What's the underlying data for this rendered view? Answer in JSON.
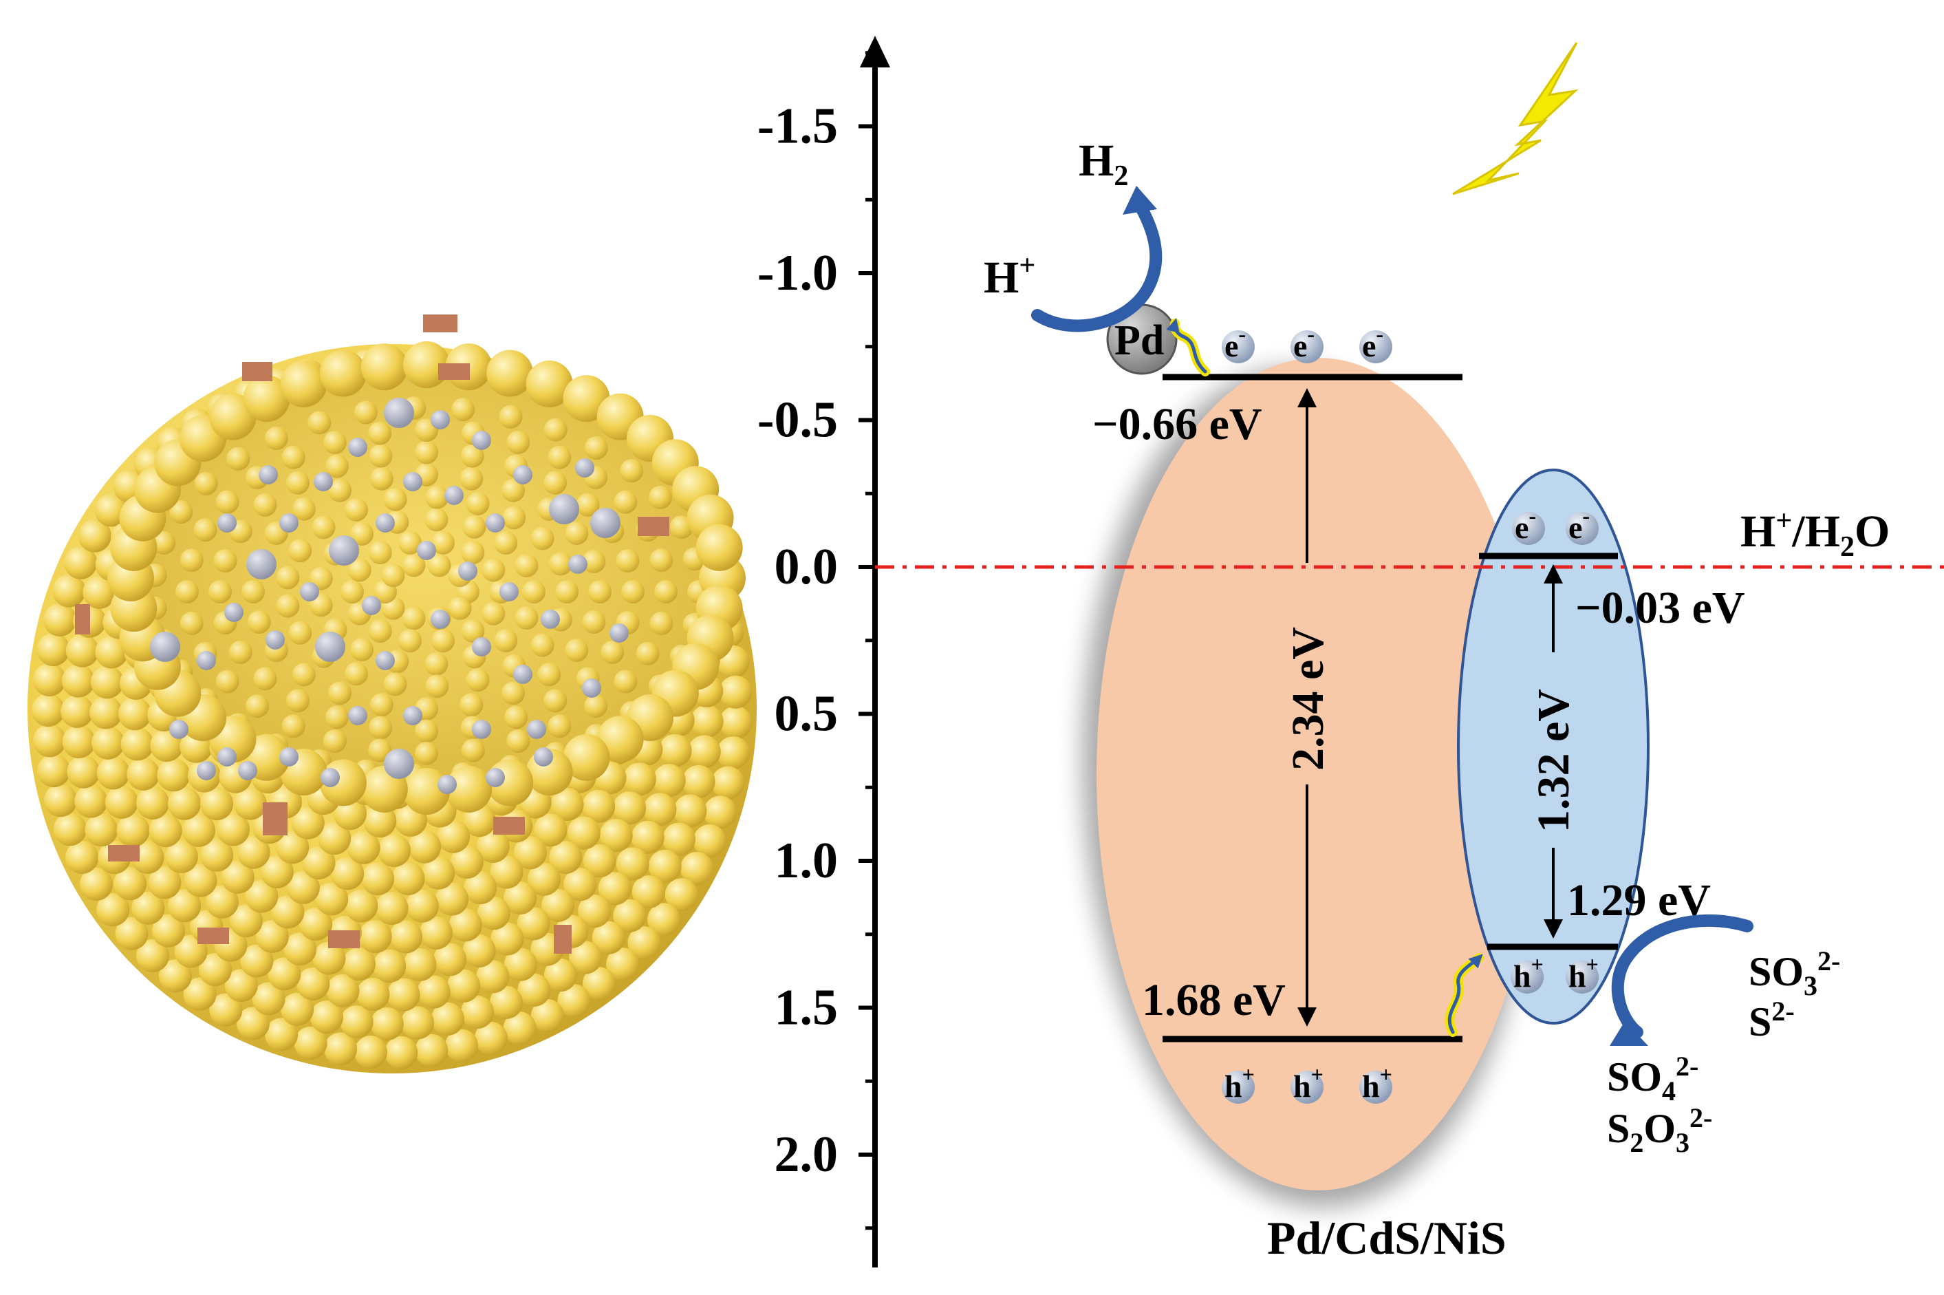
{
  "axis": {
    "ticks": [
      "-1.5",
      "-1.0",
      "-0.5",
      "0.0",
      "0.5",
      "1.0",
      "1.5",
      "2.0"
    ]
  },
  "cds": {
    "cb_value": "−0.66 eV",
    "vb_value": "1.68 eV",
    "gap": "2.34 eV",
    "electron": "e",
    "electron_sup": "-",
    "hole": "h",
    "hole_sup": "+",
    "fill": "#F8C9A9"
  },
  "nis": {
    "cb_value": "−0.03 eV",
    "vb_value": "1.29 eV",
    "gap": "1.32 eV",
    "fill": "#BDD7EE",
    "stroke": "#2F5597"
  },
  "pd": {
    "label": "Pd"
  },
  "reference": {
    "label_main": "H",
    "label_sup": "+",
    "label_tail": "/H",
    "label_sub": "2",
    "label_end": "O",
    "color": "#E32222"
  },
  "reduction": {
    "h_plus": "H",
    "h_plus_sup": "+",
    "h2": "H",
    "h2_sub": "2"
  },
  "oxidation": {
    "reactant1_main": "SO",
    "reactant1_sub": "3",
    "reactant1_sup": "2-",
    "reactant2_main": "S",
    "reactant2_sup": "2-",
    "product1_main": "SO",
    "product1_sub": "4",
    "product1_sup": "2-",
    "product2_a": "S",
    "product2_sub1": "2",
    "product2_b": "O",
    "product2_sub2": "3",
    "product2_sup": "2-"
  },
  "caption": "Pd/CdS/NiS",
  "colors": {
    "sphere": "#F2D454",
    "sphere_dark": "#C9A72E",
    "ni": "#A6A9B8",
    "pd_dot": "#C07A5A",
    "arrow_blue": "#2F5DA8",
    "light": "#F4E900"
  }
}
